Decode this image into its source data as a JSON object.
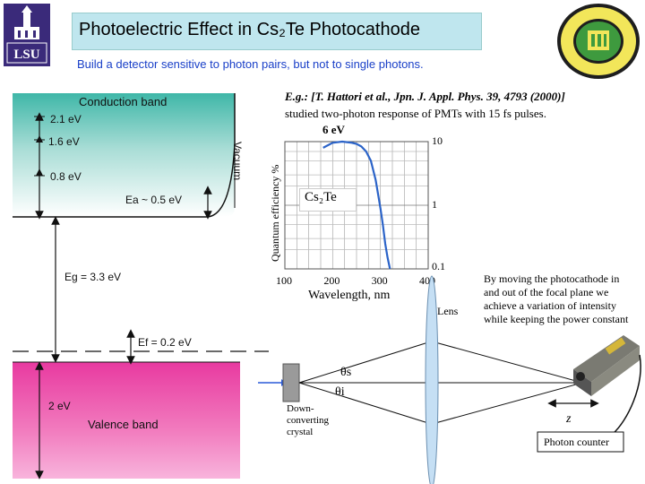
{
  "header": {
    "title": "Photoelectric Effect in Cs₂Te Photocathode",
    "subtitle": "Build a detector sensitive to photon pairs, but not to single photons."
  },
  "logos": {
    "left_text": "LSU",
    "right_icon": "seal-icon"
  },
  "band_diagram": {
    "conduction_label": "Conduction band",
    "valence_label": "Valence band",
    "vacuum_label": "Vacuum",
    "levels": [
      "2.1 eV",
      "1.6 eV",
      "0.8 eV"
    ],
    "ea_label": "Ea ~ 0.5 eV",
    "eg_label": "Eg = 3.3 eV",
    "ef_label": "Ef = 0.2 eV",
    "valence_width": "2 eV"
  },
  "reference": {
    "citation": "E.g.: [T. Hattori et al., Jpn. J. Appl. Phys. 39, 4793 (2000)]",
    "note": "studied two-photon response of PMTs with 15 fs pulses.",
    "energy": "6 eV"
  },
  "chart_data": {
    "type": "line",
    "title": "",
    "xlabel": "Wavelength, nm",
    "ylabel": "Quantum efficiency %",
    "xlim": [
      100,
      400
    ],
    "ylim": [
      0.1,
      10
    ],
    "yscale": "log",
    "x_ticks": [
      "100",
      "200",
      "300",
      "400"
    ],
    "y_ticks": [
      "10",
      "1",
      "0.1"
    ],
    "grid": true,
    "annotation": "Cs₂Te",
    "series": [
      {
        "x": [
          180,
          200,
          220,
          240,
          250,
          260,
          270,
          280,
          290,
          300,
          305,
          310,
          315,
          320
        ],
        "y": [
          8.0,
          9.6,
          10.0,
          9.6,
          9.2,
          8.4,
          7.0,
          5.0,
          2.5,
          0.9,
          0.5,
          0.25,
          0.15,
          0.1
        ]
      }
    ]
  },
  "setup": {
    "lens_label": "Lens",
    "theta_s": "θs",
    "theta_i": "θi",
    "crystal_label": "Down-converting crystal",
    "z_label": "z",
    "counter_label": "Photon counter",
    "description": "By moving the photocathode in and out of the focal plane we achieve a variation of intensity while keeping the power constant"
  }
}
